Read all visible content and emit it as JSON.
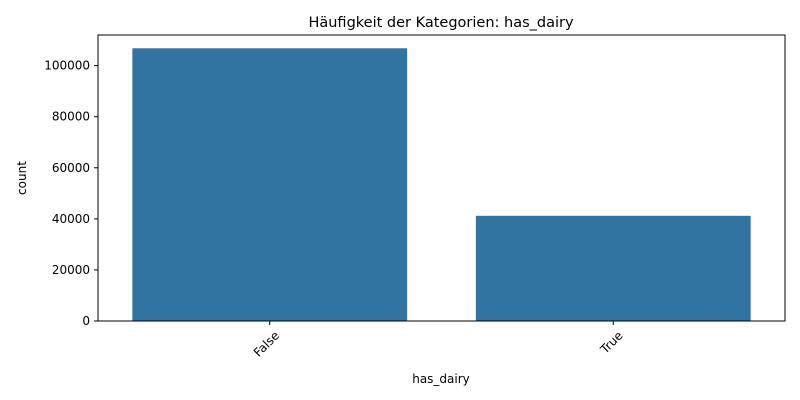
{
  "chart_data": {
    "type": "bar",
    "title": "Häufigkeit der Kategorien: has_dairy",
    "xlabel": "has_dairy",
    "ylabel": "count",
    "categories": [
      "False",
      "True"
    ],
    "values": [
      106800,
      41200
    ],
    "ylim": [
      0,
      112000
    ],
    "yticks": [
      0,
      20000,
      40000,
      60000,
      80000,
      100000
    ],
    "ytick_labels": [
      "0",
      "20000",
      "40000",
      "60000",
      "80000",
      "100000"
    ],
    "grid": false,
    "bar_color": "#3274a1"
  }
}
